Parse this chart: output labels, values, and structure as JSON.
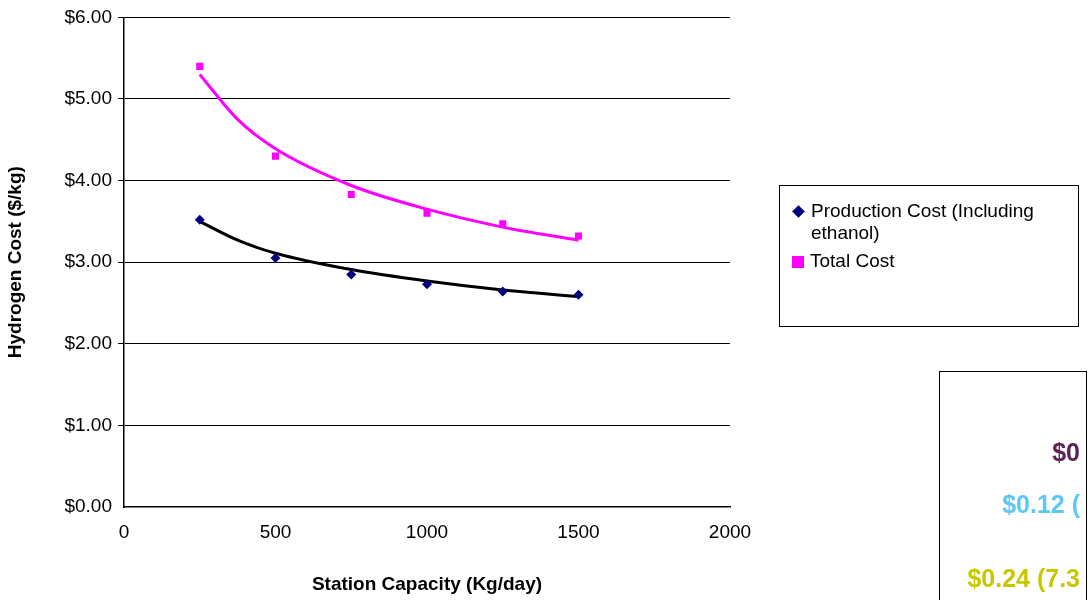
{
  "chart_data": {
    "type": "scatter",
    "xlabel": "Station Capacity (Kg/day)",
    "ylabel": "Hydrogen Cost ($/kg)",
    "xlim": [
      0,
      2000
    ],
    "xticks": [
      0,
      500,
      1000,
      1500,
      2000
    ],
    "ylim": [
      0,
      6
    ],
    "yticks": [
      {
        "value": 0,
        "label": "$0.00"
      },
      {
        "value": 1,
        "label": "$1.00"
      },
      {
        "value": 2,
        "label": "$2.00"
      },
      {
        "value": 3,
        "label": "$3.00"
      },
      {
        "value": 4,
        "label": "$4.00"
      },
      {
        "value": 5,
        "label": "$5.00"
      },
      {
        "value": 6,
        "label": "$6.00"
      }
    ],
    "grid": "y",
    "legend": "right",
    "series": [
      {
        "name": "Production Cost (Including ethanol)",
        "color": "#000080",
        "marker": "diamond",
        "x": [
          250,
          500,
          750,
          1000,
          1250,
          1500
        ],
        "values": [
          3.52,
          3.05,
          2.85,
          2.73,
          2.64,
          2.6
        ]
      },
      {
        "name": "Total Cost",
        "color": "#ff00ff",
        "marker": "square",
        "x": [
          250,
          500,
          750,
          1000,
          1250,
          1500
        ],
        "values": [
          5.4,
          4.3,
          3.83,
          3.6,
          3.47,
          3.32
        ]
      },
      {
        "type": "line",
        "color": "#000000",
        "marker": "none",
        "x": [
          250,
          375,
          500,
          750,
          1000,
          1250,
          1500
        ],
        "values": [
          3.5,
          3.27,
          3.11,
          2.91,
          2.77,
          2.66,
          2.58
        ]
      },
      {
        "type": "line",
        "color": "#ff00ff",
        "marker": "none",
        "x": [
          250,
          375,
          500,
          750,
          1000,
          1250,
          1500
        ],
        "values": [
          5.3,
          4.75,
          4.39,
          3.94,
          3.65,
          3.43,
          3.27
        ]
      }
    ],
    "annotations": [
      "$0",
      "$0.12 (",
      "$0.24 (7.3"
    ]
  }
}
